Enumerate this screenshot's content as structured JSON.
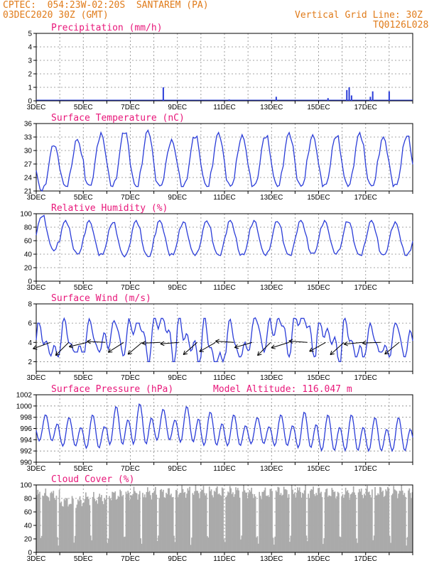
{
  "header": {
    "line1": "CPTEC:  054:23W-02:20S  SANTAREM (PA)",
    "line2": "03DEC2020 30Z (GMT)",
    "grid_note": "Vertical Grid Line: 30Z",
    "code": "TQ0126L028"
  },
  "colors": {
    "header": "#e07b1a",
    "title": "#e8177a",
    "line": "#2a3cd8",
    "cloud": "#aaaaaa"
  },
  "x_labels": [
    "3DEC",
    "5DEC",
    "7DEC",
    "9DEC",
    "11DEC",
    "13DEC",
    "15DEC",
    "17DEC"
  ],
  "chart_data": [
    {
      "type": "bar",
      "title": "Precipitation (mm/h)",
      "ylim": [
        0,
        5
      ],
      "yticks": [
        0,
        1,
        2,
        3,
        4,
        5
      ],
      "x": [
        5.4,
        8.2,
        10.2,
        12.4,
        13.2,
        13.3,
        13.4,
        14.2,
        14.3,
        15.0
      ],
      "values": [
        1.0,
        0.1,
        0.3,
        0.2,
        0.8,
        1.0,
        0.4,
        0.3,
        0.7,
        0.7
      ]
    },
    {
      "type": "line",
      "title": "Surface Temperature (nC)",
      "ylim": [
        21,
        36
      ],
      "yticks": [
        21,
        24,
        27,
        30,
        33,
        36
      ],
      "daily_min": [
        21,
        22,
        22,
        22,
        22,
        22,
        22,
        22,
        22,
        22,
        22,
        22,
        22,
        22,
        22,
        22
      ],
      "daily_max": [
        31.5,
        32.5,
        34,
        34.5,
        34.5,
        32.5,
        33.5,
        34,
        33.5,
        33.5,
        34,
        33.5,
        33.5,
        34,
        33,
        33.5
      ]
    },
    {
      "type": "line",
      "title": "Relative Humidity (%)",
      "ylim": [
        0,
        100
      ],
      "yticks": [
        0,
        20,
        40,
        60,
        80,
        100
      ],
      "daily_min": [
        45,
        40,
        38,
        36,
        36,
        38,
        38,
        38,
        38,
        38,
        38,
        40,
        40,
        38,
        38,
        38
      ],
      "daily_max": [
        98,
        90,
        90,
        88,
        90,
        90,
        88,
        90,
        90,
        90,
        90,
        90,
        90,
        90,
        90,
        88
      ]
    },
    {
      "type": "line",
      "title": "Surface Wind (m/s)",
      "ylim": [
        1,
        8
      ],
      "yticks": [
        2,
        4,
        6,
        8
      ],
      "daily_min": [
        2.5,
        3,
        3,
        2.5,
        2,
        2,
        2,
        2,
        2.5,
        3,
        2.5,
        2.5,
        2,
        2.5,
        3,
        2.5
      ],
      "daily_max": [
        6,
        6.5,
        6.5,
        6.5,
        6,
        6.5,
        6.5,
        6.5,
        6.5,
        7,
        6.5,
        6.5,
        6,
        6.5,
        6,
        6.5
      ]
    },
    {
      "type": "line",
      "title": "Surface Pressure (hPa)",
      "annotation": "Model Altitude: 116.047 m",
      "ylim": [
        990,
        1002
      ],
      "yticks": [
        990,
        992,
        994,
        996,
        998,
        1000,
        1002
      ],
      "daily_min": [
        993,
        992,
        991.5,
        992,
        992,
        993,
        992.5,
        992,
        992,
        992.5,
        992,
        991.5,
        991,
        991,
        991,
        991
      ],
      "daily_max": [
        998.5,
        998,
        998.5,
        1000,
        1000.5,
        999.5,
        1000,
        999,
        998.5,
        998,
        998.5,
        999,
        998.5,
        998.5,
        998,
        998
      ]
    },
    {
      "type": "area",
      "title": "Cloud Cover (%)",
      "ylim": [
        0,
        100
      ],
      "yticks": [
        0,
        20,
        40,
        60,
        80,
        100
      ],
      "daily_level": [
        85,
        75,
        80,
        85,
        88,
        88,
        90,
        90,
        90,
        88,
        90,
        90,
        88,
        88,
        90,
        90
      ]
    }
  ]
}
